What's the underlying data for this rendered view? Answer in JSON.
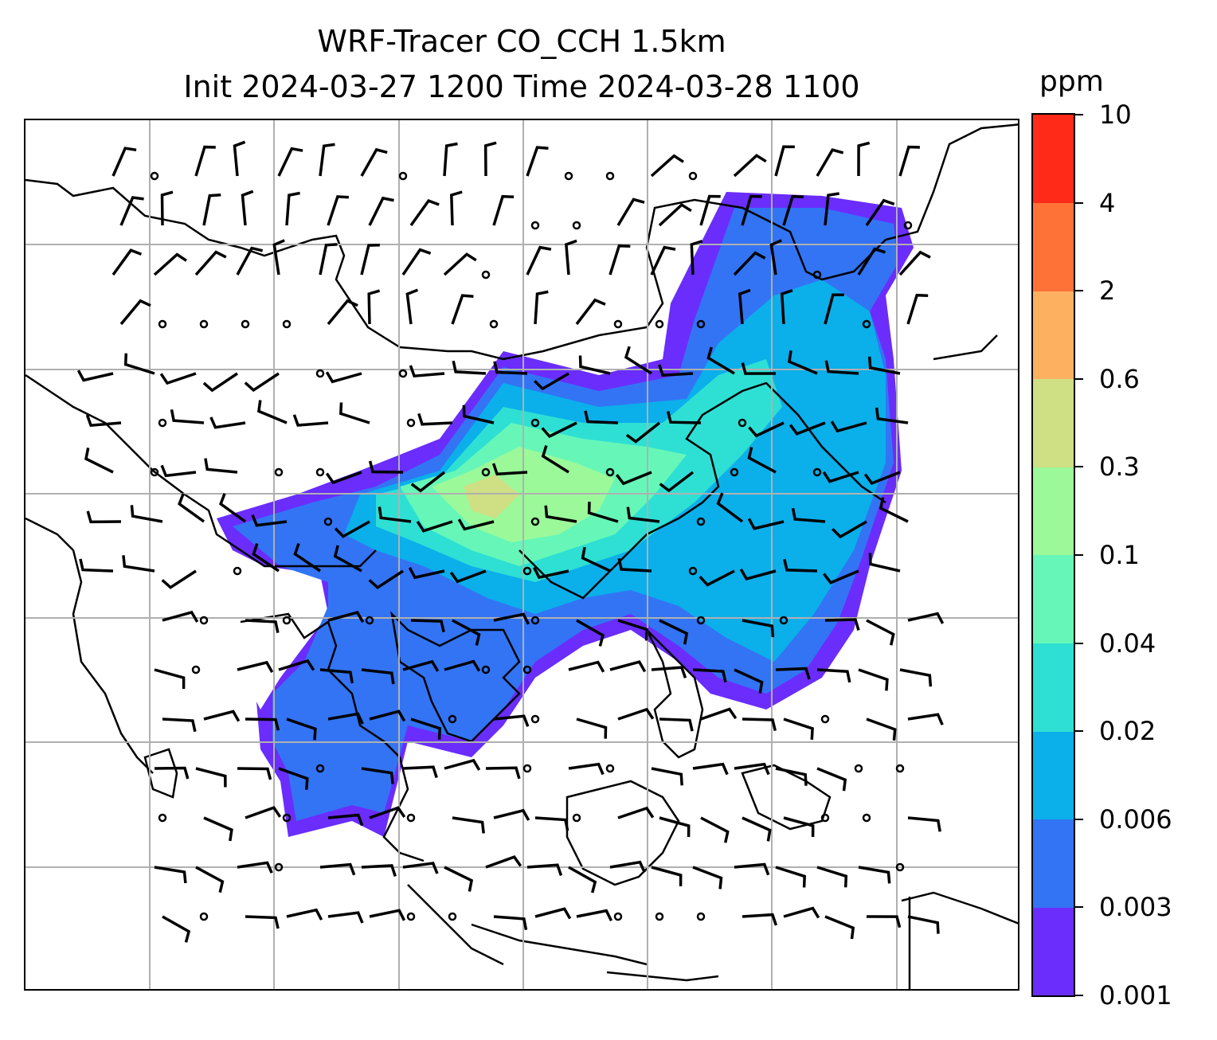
{
  "title": {
    "line1": "WRF-Tracer CO_CCH 1.5km",
    "line2": "Init 2024-03-27 1200 Time 2024-03-28 1100"
  },
  "colorbar": {
    "unit": "ppm",
    "levels": [
      "0.001",
      "0.003",
      "0.006",
      "0.02",
      "0.04",
      "0.1",
      "0.3",
      "0.6",
      "2",
      "4",
      "10"
    ],
    "colors": [
      "#6a2dfc",
      "#3374f5",
      "#0bafea",
      "#2ee0d4",
      "#66f7b8",
      "#9bf99a",
      "#cfdf83",
      "#fcb060",
      "#ff7237",
      "#ff2a18"
    ]
  },
  "map": {
    "type": "filled-contour with wind barbs",
    "gridlines": true,
    "coastlines": true,
    "wind_barbs": true
  }
}
